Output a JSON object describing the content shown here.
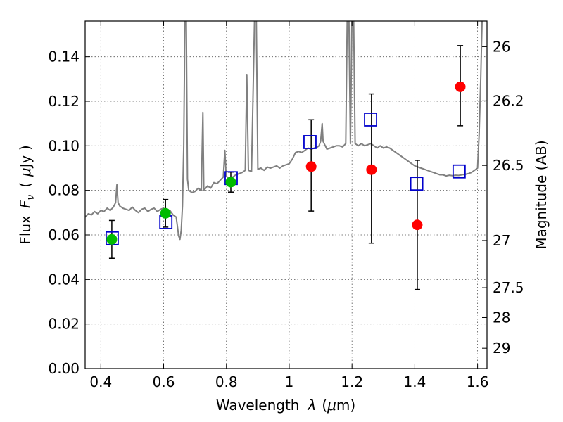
{
  "chart_data": {
    "type": "scatter",
    "title": "",
    "xlabel_prefix": "Wavelength",
    "xlabel_symbol": "λ",
    "xlabel_unit_open": "(",
    "xlabel_unit_mu": "μ",
    "xlabel_unit_rest": "m)",
    "ylabel_prefix": "Flux",
    "ylabel_symbol": "F",
    "ylabel_subscript": "ν",
    "ylabel_unit_open": "(",
    "ylabel_unit_mu": "μ",
    "ylabel_unit_rest": "Jy )",
    "y2label": "Magnitude (AB)",
    "xlim": [
      0.35,
      1.63
    ],
    "ylim": [
      0.0,
      0.156
    ],
    "grid": true,
    "x_ticks": [
      0.4,
      0.6,
      0.8,
      1.0,
      1.2,
      1.4,
      1.6
    ],
    "x_tick_labels": [
      "0.4",
      "0.6",
      "0.8",
      "1",
      "1.2",
      "1.4",
      "1.6"
    ],
    "y_ticks": [
      0.0,
      0.02,
      0.04,
      0.06,
      0.08,
      0.1,
      0.12,
      0.14
    ],
    "y_tick_labels": [
      "0.00",
      "0.02",
      "0.04",
      "0.06",
      "0.08",
      "0.10",
      "0.12",
      "0.14"
    ],
    "y2_ticks": [
      {
        "label": "26",
        "flux": 0.1445
      },
      {
        "label": "26.2",
        "flux": 0.1202
      },
      {
        "label": "26.5",
        "flux": 0.0912
      },
      {
        "label": "27",
        "flux": 0.0575
      },
      {
        "label": "27.5",
        "flux": 0.0363
      },
      {
        "label": "28",
        "flux": 0.0229
      },
      {
        "label": "29",
        "flux": 0.0091
      }
    ],
    "colors": {
      "spectrum": "#808080",
      "model": "#0000cc",
      "green_points": "#00bb00",
      "red_points": "#ff0000",
      "errorbar": "#000000",
      "grid": "#555555"
    },
    "series": [
      {
        "kind": "model-template-squares",
        "points": [
          {
            "x": 0.435,
            "y": 0.0585
          },
          {
            "x": 0.606,
            "y": 0.0657
          },
          {
            "x": 0.814,
            "y": 0.0855
          },
          {
            "x": 1.065,
            "y": 0.1017
          },
          {
            "x": 1.258,
            "y": 0.1118
          },
          {
            "x": 1.405,
            "y": 0.083
          },
          {
            "x": 1.54,
            "y": 0.0885
          }
        ]
      },
      {
        "kind": "measured-green",
        "points": [
          {
            "x": 0.435,
            "y": 0.058,
            "err_lo": 0.0085,
            "err_hi": 0.0085
          },
          {
            "x": 0.606,
            "y": 0.0697,
            "err_lo": 0.0062,
            "err_hi": 0.0062
          },
          {
            "x": 0.814,
            "y": 0.0837,
            "err_lo": 0.0045,
            "err_hi": 0.0045
          }
        ]
      },
      {
        "kind": "measured-red",
        "points": [
          {
            "x": 1.07,
            "y": 0.0907,
            "err_lo": 0.02,
            "err_hi": 0.021
          },
          {
            "x": 1.262,
            "y": 0.0893,
            "err_lo": 0.033,
            "err_hi": 0.034
          },
          {
            "x": 1.408,
            "y": 0.0645,
            "err_lo": 0.029,
            "err_hi": 0.029
          },
          {
            "x": 1.545,
            "y": 0.1265,
            "err_lo": 0.0175,
            "err_hi": 0.0185
          }
        ]
      }
    ],
    "spectrum": [
      [
        0.35,
        0.068
      ],
      [
        0.36,
        0.0695
      ],
      [
        0.37,
        0.069
      ],
      [
        0.38,
        0.0705
      ],
      [
        0.39,
        0.0695
      ],
      [
        0.4,
        0.071
      ],
      [
        0.41,
        0.0705
      ],
      [
        0.42,
        0.072
      ],
      [
        0.43,
        0.071
      ],
      [
        0.44,
        0.0725
      ],
      [
        0.447,
        0.0745
      ],
      [
        0.451,
        0.0825
      ],
      [
        0.455,
        0.0745
      ],
      [
        0.46,
        0.073
      ],
      [
        0.47,
        0.072
      ],
      [
        0.48,
        0.0715
      ],
      [
        0.49,
        0.071
      ],
      [
        0.5,
        0.0725
      ],
      [
        0.51,
        0.071
      ],
      [
        0.52,
        0.07
      ],
      [
        0.53,
        0.0715
      ],
      [
        0.54,
        0.072
      ],
      [
        0.55,
        0.0705
      ],
      [
        0.56,
        0.0715
      ],
      [
        0.57,
        0.072
      ],
      [
        0.58,
        0.0705
      ],
      [
        0.59,
        0.0715
      ],
      [
        0.6,
        0.072
      ],
      [
        0.61,
        0.0705
      ],
      [
        0.62,
        0.071
      ],
      [
        0.63,
        0.069
      ],
      [
        0.64,
        0.068
      ],
      [
        0.648,
        0.0595
      ],
      [
        0.652,
        0.058
      ],
      [
        0.656,
        0.062
      ],
      [
        0.66,
        0.073
      ],
      [
        0.664,
        0.1
      ],
      [
        0.668,
        0.16
      ],
      [
        0.672,
        0.16
      ],
      [
        0.676,
        0.085
      ],
      [
        0.68,
        0.08
      ],
      [
        0.69,
        0.079
      ],
      [
        0.7,
        0.0795
      ],
      [
        0.71,
        0.081
      ],
      [
        0.72,
        0.08
      ],
      [
        0.725,
        0.115
      ],
      [
        0.728,
        0.08
      ],
      [
        0.74,
        0.082
      ],
      [
        0.75,
        0.081
      ],
      [
        0.76,
        0.0835
      ],
      [
        0.77,
        0.083
      ],
      [
        0.78,
        0.0845
      ],
      [
        0.79,
        0.086
      ],
      [
        0.795,
        0.098
      ],
      [
        0.799,
        0.0865
      ],
      [
        0.81,
        0.085
      ],
      [
        0.82,
        0.086
      ],
      [
        0.83,
        0.087
      ],
      [
        0.84,
        0.0875
      ],
      [
        0.85,
        0.088
      ],
      [
        0.86,
        0.089
      ],
      [
        0.865,
        0.132
      ],
      [
        0.87,
        0.089
      ],
      [
        0.88,
        0.0885
      ],
      [
        0.89,
        0.16
      ],
      [
        0.895,
        0.16
      ],
      [
        0.9,
        0.0895
      ],
      [
        0.91,
        0.09
      ],
      [
        0.92,
        0.089
      ],
      [
        0.93,
        0.0905
      ],
      [
        0.94,
        0.09
      ],
      [
        0.95,
        0.0905
      ],
      [
        0.96,
        0.091
      ],
      [
        0.97,
        0.09
      ],
      [
        0.98,
        0.091
      ],
      [
        0.99,
        0.0915
      ],
      [
        1.0,
        0.092
      ],
      [
        1.01,
        0.094
      ],
      [
        1.02,
        0.097
      ],
      [
        1.03,
        0.0975
      ],
      [
        1.04,
        0.097
      ],
      [
        1.05,
        0.098
      ],
      [
        1.06,
        0.099
      ],
      [
        1.07,
        0.0985
      ],
      [
        1.08,
        0.099
      ],
      [
        1.09,
        0.0995
      ],
      [
        1.095,
        0.1
      ],
      [
        1.1,
        0.102
      ],
      [
        1.105,
        0.11
      ],
      [
        1.108,
        0.102
      ],
      [
        1.12,
        0.0985
      ],
      [
        1.13,
        0.099
      ],
      [
        1.14,
        0.0995
      ],
      [
        1.15,
        0.1
      ],
      [
        1.16,
        0.1
      ],
      [
        1.17,
        0.0995
      ],
      [
        1.18,
        0.101
      ],
      [
        1.185,
        0.16
      ],
      [
        1.19,
        0.16
      ],
      [
        1.195,
        0.101
      ],
      [
        1.2,
        0.16
      ],
      [
        1.205,
        0.16
      ],
      [
        1.21,
        0.101
      ],
      [
        1.22,
        0.1
      ],
      [
        1.23,
        0.101
      ],
      [
        1.24,
        0.1
      ],
      [
        1.25,
        0.1005
      ],
      [
        1.26,
        0.101
      ],
      [
        1.27,
        0.1
      ],
      [
        1.28,
        0.099
      ],
      [
        1.29,
        0.1
      ],
      [
        1.3,
        0.099
      ],
      [
        1.31,
        0.0995
      ],
      [
        1.32,
        0.099
      ],
      [
        1.33,
        0.098
      ],
      [
        1.34,
        0.097
      ],
      [
        1.35,
        0.096
      ],
      [
        1.36,
        0.095
      ],
      [
        1.37,
        0.094
      ],
      [
        1.38,
        0.093
      ],
      [
        1.39,
        0.092
      ],
      [
        1.4,
        0.091
      ],
      [
        1.41,
        0.0905
      ],
      [
        1.42,
        0.09
      ],
      [
        1.43,
        0.0895
      ],
      [
        1.44,
        0.089
      ],
      [
        1.45,
        0.0885
      ],
      [
        1.46,
        0.088
      ],
      [
        1.47,
        0.0875
      ],
      [
        1.48,
        0.087
      ],
      [
        1.49,
        0.087
      ],
      [
        1.5,
        0.0865
      ],
      [
        1.51,
        0.0868
      ],
      [
        1.52,
        0.0866
      ],
      [
        1.53,
        0.0868
      ],
      [
        1.54,
        0.0867
      ],
      [
        1.55,
        0.087
      ],
      [
        1.56,
        0.0872
      ],
      [
        1.57,
        0.0875
      ],
      [
        1.58,
        0.088
      ],
      [
        1.59,
        0.089
      ],
      [
        1.6,
        0.09
      ],
      [
        1.605,
        0.105
      ],
      [
        1.61,
        0.13
      ],
      [
        1.615,
        0.16
      ],
      [
        1.62,
        0.16
      ],
      [
        1.63,
        0.16
      ]
    ]
  }
}
